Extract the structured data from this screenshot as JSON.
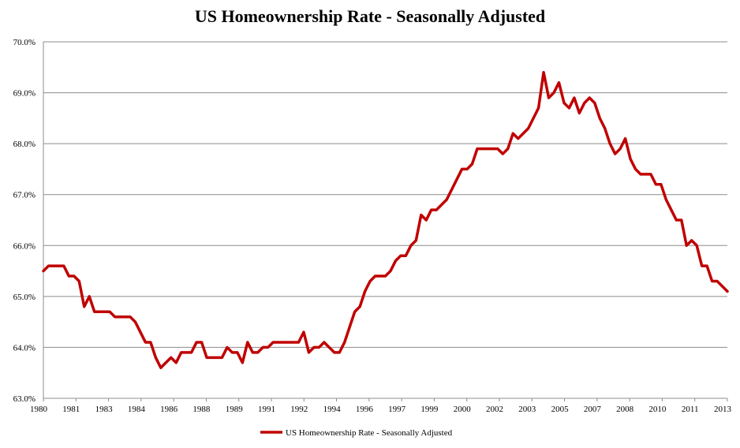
{
  "chart_data": {
    "type": "line",
    "title": "US Homeownership Rate - Seasonally Adjusted",
    "xlabel": "",
    "ylabel": "",
    "ylim": [
      63.0,
      70.0
    ],
    "yticks": [
      "63.0%",
      "64.0%",
      "65.0%",
      "66.0%",
      "67.0%",
      "68.0%",
      "69.0%",
      "70.0%"
    ],
    "yticks_values": [
      63.0,
      64.0,
      65.0,
      66.0,
      67.0,
      68.0,
      69.0,
      70.0
    ],
    "xticks": [
      "1980",
      "1981",
      "1983",
      "1984",
      "1986",
      "1988",
      "1989",
      "1991",
      "1992",
      "1994",
      "1996",
      "1997",
      "1999",
      "2000",
      "2002",
      "2003",
      "2005",
      "2007",
      "2008",
      "2010",
      "2011",
      "2013"
    ],
    "grid": "horizontal",
    "legend_position": "bottom",
    "line_color": "#c00000",
    "series": [
      {
        "name": "US Homeownership Rate - Seasonally Adjusted",
        "values": [
          65.5,
          65.6,
          65.6,
          65.6,
          65.6,
          65.4,
          65.4,
          65.3,
          64.8,
          65.0,
          64.7,
          64.7,
          64.7,
          64.7,
          64.6,
          64.6,
          64.6,
          64.6,
          64.5,
          64.3,
          64.1,
          64.1,
          63.8,
          63.6,
          63.7,
          63.8,
          63.7,
          63.9,
          63.9,
          63.9,
          64.1,
          64.1,
          63.8,
          63.8,
          63.8,
          63.8,
          64.0,
          63.9,
          63.9,
          63.7,
          64.1,
          63.9,
          63.9,
          64.0,
          64.0,
          64.1,
          64.1,
          64.1,
          64.1,
          64.1,
          64.1,
          64.3,
          63.9,
          64.0,
          64.0,
          64.1,
          64.0,
          63.9,
          63.9,
          64.1,
          64.4,
          64.7,
          64.8,
          65.1,
          65.3,
          65.4,
          65.4,
          65.4,
          65.5,
          65.7,
          65.8,
          65.8,
          66.0,
          66.1,
          66.6,
          66.5,
          66.7,
          66.7,
          66.8,
          66.9,
          67.1,
          67.3,
          67.5,
          67.5,
          67.6,
          67.9,
          67.9,
          67.9,
          67.9,
          67.9,
          67.8,
          67.9,
          68.2,
          68.1,
          68.2,
          68.3,
          68.5,
          68.7,
          69.4,
          68.9,
          69.0,
          69.2,
          68.8,
          68.7,
          68.9,
          68.6,
          68.8,
          68.9,
          68.8,
          68.5,
          68.3,
          68.0,
          67.8,
          67.9,
          68.1,
          67.7,
          67.5,
          67.4,
          67.4,
          67.4,
          67.2,
          67.2,
          66.9,
          66.7,
          66.5,
          66.5,
          66.0,
          66.1,
          66.0,
          65.6,
          65.6,
          65.3,
          65.3,
          65.2,
          65.1
        ]
      }
    ]
  }
}
